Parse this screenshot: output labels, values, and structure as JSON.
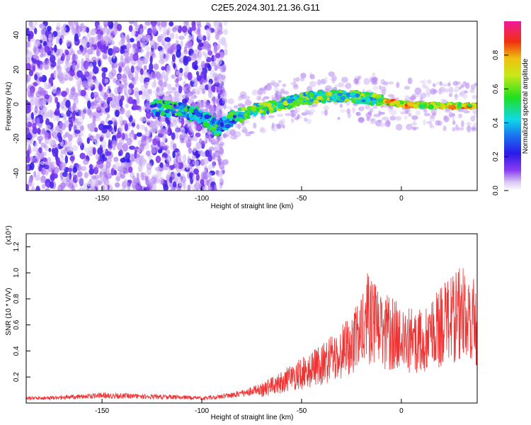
{
  "figure": {
    "title": "C2E5.2024.301.21.36.G11"
  },
  "chart_data": [
    {
      "type": "heatmap",
      "xlabel": "Height of straight line (km)",
      "ylabel": "Frequency (Hz)",
      "xlim": [
        -188,
        38
      ],
      "ylim": [
        -50,
        48
      ],
      "xticks": [
        -150,
        -100,
        -50,
        0
      ],
      "xtick_labels": [
        "-150",
        "-100",
        "-50",
        "0"
      ],
      "yticks": [
        -40,
        -20,
        0,
        20,
        40
      ],
      "ytick_labels": [
        "-40",
        "-20",
        "0",
        "20",
        "40"
      ],
      "colorbar": {
        "label": "Normalized spectral amplitude",
        "range": [
          0,
          1
        ],
        "ticks": [
          0.0,
          0.2,
          0.4,
          0.6,
          0.8
        ],
        "tick_labels": [
          "0.0",
          "0.2",
          "0.4",
          "0.6",
          "0.8"
        ]
      },
      "ridge_center_hz": [
        {
          "x": -122,
          "y": -2
        },
        {
          "x": -110,
          "y": -4
        },
        {
          "x": -100,
          "y": -7
        },
        {
          "x": -92,
          "y": -14
        },
        {
          "x": -85,
          "y": -8
        },
        {
          "x": -75,
          "y": -4
        },
        {
          "x": -60,
          "y": 0
        },
        {
          "x": -45,
          "y": 4
        },
        {
          "x": -30,
          "y": 5
        },
        {
          "x": -15,
          "y": 3
        },
        {
          "x": 0,
          "y": 0
        },
        {
          "x": 15,
          "y": -1
        },
        {
          "x": 38,
          "y": -1
        }
      ]
    },
    {
      "type": "line",
      "xlabel": "Height of straight line (km)",
      "ylabel": "SNR (10 * V/V)",
      "y_multiplier": "(x10⁴)",
      "xlim": [
        -188,
        38
      ],
      "ylim": [
        0,
        1.3
      ],
      "xticks": [
        -150,
        -100,
        -50,
        0
      ],
      "xtick_labels": [
        "-150",
        "-100",
        "-50",
        "0"
      ],
      "yticks": [
        0.2,
        0.4,
        0.6,
        0.8,
        1.0,
        1.2
      ],
      "ytick_labels": [
        "0.2",
        "0.4",
        "0.6",
        "0.8",
        "1.0",
        "1.2"
      ],
      "series": [
        {
          "color": "#ee3333",
          "envelope_x": [
            -188,
            -170,
            -150,
            -130,
            -110,
            -100,
            -90,
            -80,
            -70,
            -60,
            -50,
            -40,
            -30,
            -20,
            -17,
            -10,
            0,
            10,
            20,
            30,
            35,
            38
          ],
          "envelope_y": [
            0.05,
            0.06,
            0.08,
            0.07,
            0.06,
            0.05,
            0.07,
            0.1,
            0.15,
            0.25,
            0.35,
            0.45,
            0.6,
            0.8,
            1.0,
            0.85,
            0.78,
            0.72,
            0.9,
            1.05,
            1.1,
            0.8
          ]
        }
      ]
    }
  ]
}
